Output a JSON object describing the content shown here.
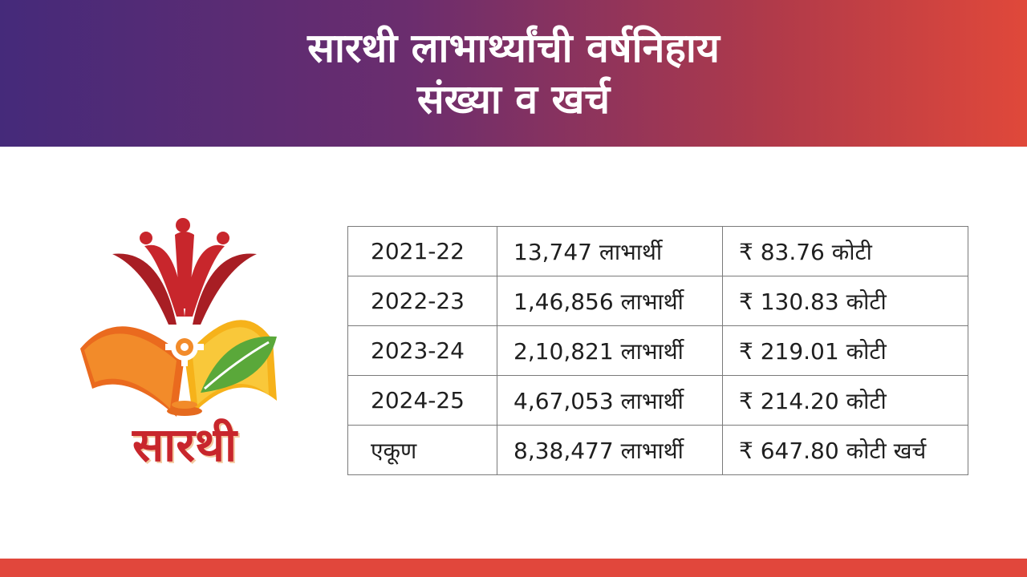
{
  "header": {
    "title_line1": "सारथी लाभार्थ्यांची वर्षनिहाय",
    "title_line2": "संख्या व खर्च"
  },
  "logo": {
    "wordmark": "सारथी",
    "colors": {
      "red": "#c8262c",
      "orange": "#ef7d22",
      "yellow": "#f6b21a",
      "green": "#5aa83a"
    }
  },
  "table": {
    "rows": [
      {
        "year": "2021-22",
        "beneficiaries": "13,747 लाभार्थी",
        "expense": "₹ 83.76 कोटी"
      },
      {
        "year": "2022-23",
        "beneficiaries": "1,46,856 लाभार्थी",
        "expense": "₹ 130.83 कोटी"
      },
      {
        "year": "2023-24",
        "beneficiaries": "2,10,821 लाभार्थी",
        "expense": "₹ 219.01 कोटी"
      },
      {
        "year": "2024-25",
        "beneficiaries": "4,67,053 लाभार्थी",
        "expense": "₹ 214.20 कोटी"
      },
      {
        "year": "एकूण",
        "beneficiaries": "8,38,477 लाभार्थी",
        "expense": "₹ 647.80 कोटी खर्च"
      }
    ]
  },
  "theme": {
    "banner_start": "#452a7a",
    "banner_end": "#e0483a",
    "footer_bar": "#e1473c"
  }
}
